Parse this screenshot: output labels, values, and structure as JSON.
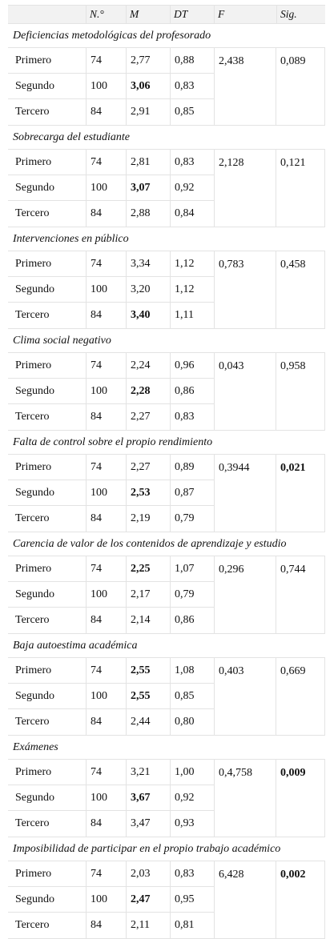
{
  "columns": [
    "",
    "N.°",
    "M",
    "DT",
    "F",
    "Sig."
  ],
  "groups": [
    {
      "title": "Deficiencias metodológicas del profesorado",
      "F": "2,438",
      "sig": "0,089",
      "sig_bold": false,
      "rows": [
        {
          "label": "Primero",
          "n": "74",
          "m": "2,77",
          "dt": "0,88",
          "m_bold": false
        },
        {
          "label": "Segundo",
          "n": "100",
          "m": "3,06",
          "dt": "0,83",
          "m_bold": true
        },
        {
          "label": "Tercero",
          "n": "84",
          "m": "2,91",
          "dt": "0,85",
          "m_bold": false
        }
      ]
    },
    {
      "title": "Sobrecarga del estudiante",
      "F": "2,128",
      "sig": "0,121",
      "sig_bold": false,
      "rows": [
        {
          "label": "Primero",
          "n": "74",
          "m": "2,81",
          "dt": "0,83",
          "m_bold": false
        },
        {
          "label": "Segundo",
          "n": "100",
          "m": "3,07",
          "dt": "0,92",
          "m_bold": true
        },
        {
          "label": "Tercero",
          "n": "84",
          "m": "2,88",
          "dt": "0,84",
          "m_bold": false
        }
      ]
    },
    {
      "title": "Intervenciones en público",
      "F": "0,783",
      "sig": "0,458",
      "sig_bold": false,
      "rows": [
        {
          "label": "Primero",
          "n": "74",
          "m": "3,34",
          "dt": "1,12",
          "m_bold": false
        },
        {
          "label": "Segundo",
          "n": "100",
          "m": "3,20",
          "dt": "1,12",
          "m_bold": false
        },
        {
          "label": "Tercero",
          "n": "84",
          "m": "3,40",
          "dt": "1,11",
          "m_bold": true
        }
      ]
    },
    {
      "title": "Clima social negativo",
      "F": "0,043",
      "sig": "0,958",
      "sig_bold": false,
      "rows": [
        {
          "label": "Primero",
          "n": "74",
          "m": "2,24",
          "dt": "0,96",
          "m_bold": false
        },
        {
          "label": "Segundo",
          "n": "100",
          "m": "2,28",
          "dt": "0,86",
          "m_bold": true
        },
        {
          "label": "Tercero",
          "n": "84",
          "m": "2,27",
          "dt": "0,83",
          "m_bold": false
        }
      ]
    },
    {
      "title": "Falta de control sobre el propio rendimiento",
      "F": "0,3944",
      "sig": "0,021",
      "sig_bold": true,
      "rows": [
        {
          "label": "Primero",
          "n": "74",
          "m": "2,27",
          "dt": "0,89",
          "m_bold": false
        },
        {
          "label": "Segundo",
          "n": "100",
          "m": "2,53",
          "dt": "0,87",
          "m_bold": true
        },
        {
          "label": "Tercero",
          "n": "84",
          "m": "2,19",
          "dt": "0,79",
          "m_bold": false
        }
      ]
    },
    {
      "title": "Carencia de valor de los contenidos de aprendizaje y estudio",
      "F": "0,296",
      "sig": "0,744",
      "sig_bold": false,
      "rows": [
        {
          "label": "Primero",
          "n": "74",
          "m": "2,25",
          "dt": "1,07",
          "m_bold": true
        },
        {
          "label": "Segundo",
          "n": "100",
          "m": "2,17",
          "dt": "0,79",
          "m_bold": false
        },
        {
          "label": "Tercero",
          "n": "84",
          "m": "2,14",
          "dt": "0,86",
          "m_bold": false
        }
      ]
    },
    {
      "title": "Baja autoestima académica",
      "F": "0,403",
      "sig": "0,669",
      "sig_bold": false,
      "rows": [
        {
          "label": "Primero",
          "n": "74",
          "m": "2,55",
          "dt": "1,08",
          "m_bold": true
        },
        {
          "label": "Segundo",
          "n": "100",
          "m": "2,55",
          "dt": "0,85",
          "m_bold": true
        },
        {
          "label": "Tercero",
          "n": "84",
          "m": "2,44",
          "dt": "0,80",
          "m_bold": false
        }
      ]
    },
    {
      "title": "Exámenes",
      "F": "0,4,758",
      "sig": "0,009",
      "sig_bold": true,
      "rows": [
        {
          "label": "Primero",
          "n": "74",
          "m": "3,21",
          "dt": "1,00",
          "m_bold": false
        },
        {
          "label": "Segundo",
          "n": "100",
          "m": "3,67",
          "dt": "0,92",
          "m_bold": true
        },
        {
          "label": "Tercero",
          "n": "84",
          "m": "3,47",
          "dt": "0,93",
          "m_bold": false
        }
      ]
    },
    {
      "title": "Imposibilidad de participar en el propio trabajo académico",
      "F": "6,428",
      "sig": "0,002",
      "sig_bold": true,
      "rows": [
        {
          "label": "Primero",
          "n": "74",
          "m": "2,03",
          "dt": "0,83",
          "m_bold": false
        },
        {
          "label": "Segundo",
          "n": "100",
          "m": "2,47",
          "dt": "0,95",
          "m_bold": true
        },
        {
          "label": "Tercero",
          "n": "84",
          "m": "2,11",
          "dt": "0,81",
          "m_bold": false
        }
      ]
    }
  ]
}
